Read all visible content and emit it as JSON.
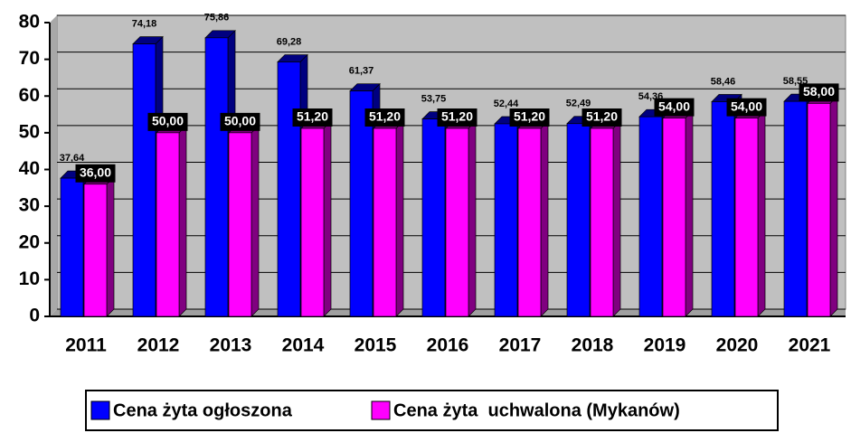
{
  "chart_data": {
    "type": "bar",
    "categories": [
      "2011",
      "2012",
      "2013",
      "2014",
      "2015",
      "2016",
      "2017",
      "2018",
      "2019",
      "2020",
      "2021"
    ],
    "series": [
      {
        "name": "Cena żyta ogłoszona",
        "color": "#0000ff",
        "side_color": "#000080",
        "values": [
          37.64,
          74.18,
          75.86,
          69.28,
          61.37,
          53.75,
          52.44,
          52.49,
          54.36,
          58.46,
          58.55
        ],
        "value_labels": [
          "37,64",
          "74,18",
          "75,86",
          "69,28",
          "61,37",
          "53,75",
          "52,44",
          "52,49",
          "54,36",
          "58,46",
          "58,55"
        ]
      },
      {
        "name": "Cena żyta  uchwalona (Mykanów)",
        "color": "#ff00ff",
        "side_color": "#800080",
        "values": [
          36.0,
          50.0,
          50.0,
          51.2,
          51.2,
          51.2,
          51.2,
          51.2,
          54.0,
          54.0,
          58.0
        ],
        "value_labels": [
          "36,00",
          "50,00",
          "50,00",
          "51,20",
          "51,20",
          "51,20",
          "51,20",
          "51,20",
          "54,00",
          "54,00",
          "58,00"
        ]
      }
    ],
    "ylim": [
      0,
      80
    ],
    "yticks": [
      0,
      10,
      20,
      30,
      40,
      50,
      60,
      70,
      80
    ],
    "grid": true,
    "legend": "bottom"
  }
}
